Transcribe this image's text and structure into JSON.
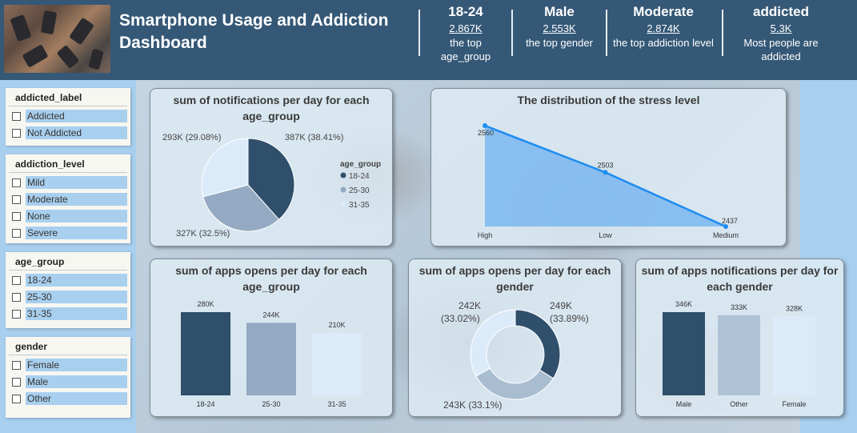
{
  "header": {
    "title": "Smartphone Usage and Addiction Dashboard",
    "kpis": [
      {
        "big": "18-24",
        "value": "2.867K",
        "label": "the top age_group"
      },
      {
        "big": "Male",
        "value": "2.553K",
        "label": "the top gender"
      },
      {
        "big": "Moderate",
        "value": "2.874K",
        "label": "the top addiction level"
      },
      {
        "big": "addicted",
        "value": "5.3K",
        "label": "Most people are addicted"
      }
    ]
  },
  "slicers": {
    "addicted_label": {
      "title": "addicted_label",
      "items": [
        "Addicted",
        "Not Addicted"
      ]
    },
    "addiction_level": {
      "title": "addiction_level",
      "items": [
        "Mild",
        "Moderate",
        "None",
        "Severe"
      ]
    },
    "age_group": {
      "title": "age_group",
      "items": [
        "18-24",
        "25-30",
        "31-35"
      ]
    },
    "gender": {
      "title": "gender",
      "items": [
        "Female",
        "Male",
        "Other"
      ]
    }
  },
  "colors": {
    "dark": "#2f4f6b",
    "mid": "#94a9c2",
    "light": "#dcebfa",
    "line": "#1e8cf0",
    "area": "#6fb0f0"
  },
  "charts": {
    "notifications_pie": {
      "title": "sum of notifications per day for each age_group",
      "legend_title": "age_group",
      "labels": [
        "387K (38.41%)",
        "327K (32.5%)",
        "293K (29.08%)"
      ]
    },
    "stress_line": {
      "title": "The distribution of the stress level"
    },
    "apps_opens_bar": {
      "title": "sum of apps opens per day for each age_group"
    },
    "apps_opens_donut": {
      "title": "sum of apps opens per day for each gender",
      "labels": [
        "249K (33.89%)",
        "243K (33.1%)",
        "242K (33.02%)"
      ]
    },
    "apps_notif_bar": {
      "title": "sum of apps notifications per day for each gender"
    }
  },
  "chart_data": [
    {
      "type": "pie",
      "title": "sum of notifications per day for each age_group",
      "legend": "age_group",
      "categories": [
        "18-24",
        "25-30",
        "31-35"
      ],
      "values": [
        387,
        327,
        293
      ],
      "value_labels": [
        "387K",
        "327K",
        "293K"
      ],
      "percents": [
        38.41,
        32.5,
        29.08
      ]
    },
    {
      "type": "area",
      "title": "The distribution of the stress level",
      "categories": [
        "High",
        "Low",
        "Medium"
      ],
      "values": [
        2560,
        2503,
        2437
      ],
      "value_labels": [
        "2560",
        "2503",
        "2437"
      ],
      "ylim": [
        2437,
        2560
      ],
      "grid": false
    },
    {
      "type": "bar",
      "title": "sum of apps opens per day for each age_group",
      "categories": [
        "18-24",
        "25-30",
        "31-35"
      ],
      "values": [
        280,
        244,
        210
      ],
      "value_labels": [
        "280K",
        "244K",
        "210K"
      ]
    },
    {
      "type": "pie",
      "title": "sum of apps opens per day for each gender",
      "values": [
        249,
        243,
        242
      ],
      "value_labels": [
        "249K",
        "243K",
        "242K"
      ],
      "percents": [
        33.89,
        33.1,
        33.02
      ]
    },
    {
      "type": "bar",
      "title": "sum of apps notifications per day for each gender",
      "categories": [
        "Male",
        "Other",
        "Female"
      ],
      "values": [
        346,
        333,
        328
      ],
      "value_labels": [
        "346K",
        "333K",
        "328K"
      ]
    }
  ]
}
